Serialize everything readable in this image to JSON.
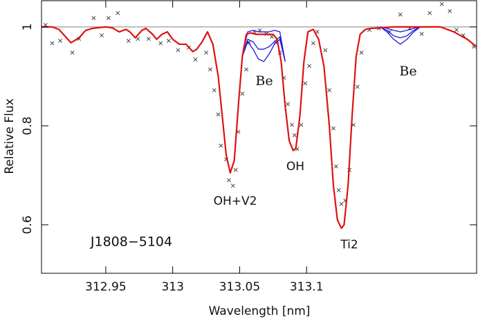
{
  "chart_data": {
    "type": "line",
    "x_label": "Wavelength [nm]",
    "y_label": "Relative Flux",
    "xlim": [
      312.902,
      313.227
    ],
    "ylim": [
      0.502,
      1.053
    ],
    "xticks": [
      312.95,
      313,
      313.05,
      313.1
    ],
    "yticks": [
      0.6,
      0.8,
      1
    ],
    "hline": 1,
    "hline_color": "#999999",
    "annotations": [
      {
        "text": "Be"
      },
      {
        "text": "Be"
      },
      {
        "text": "OH+V2"
      },
      {
        "text": "OH"
      },
      {
        "text": "Ti2"
      },
      {
        "text": "J1808−5104"
      }
    ],
    "series": [
      {
        "type": "scatter",
        "color": "#333333",
        "x": [
          312.905,
          312.91,
          312.916,
          312.925,
          312.93,
          312.941,
          312.947,
          312.952,
          312.959,
          312.967,
          312.974,
          312.982,
          312.991,
          312.997,
          313.004,
          313.012,
          313.017,
          313.025,
          313.028,
          313.031,
          313.034,
          313.036,
          313.04,
          313.042,
          313.045,
          313.047,
          313.049,
          313.052,
          313.055,
          313.057,
          313.061,
          313.065,
          313.07,
          313.074,
          313.077,
          313.08,
          313.083,
          313.086,
          313.089,
          313.091,
          313.093,
          313.096,
          313.099,
          313.102,
          313.105,
          313.108,
          313.114,
          313.117,
          313.12,
          313.122,
          313.124,
          313.126,
          313.129,
          313.132,
          313.135,
          313.138,
          313.141,
          313.147,
          313.154,
          313.162,
          313.17,
          313.177,
          313.186,
          313.192,
          313.201,
          313.207,
          313.212,
          313.217,
          313.225
        ],
        "values": [
          1.004,
          0.967,
          0.972,
          0.948,
          0.976,
          1.018,
          0.983,
          1.018,
          1.028,
          0.972,
          0.976,
          0.976,
          0.967,
          0.972,
          0.953,
          0.958,
          0.934,
          0.948,
          0.914,
          0.872,
          0.823,
          0.76,
          0.732,
          0.69,
          0.679,
          0.711,
          0.788,
          0.865,
          0.914,
          0.969,
          0.99,
          0.993,
          0.986,
          0.98,
          0.969,
          0.948,
          0.897,
          0.844,
          0.802,
          0.781,
          0.753,
          0.802,
          0.886,
          0.921,
          0.967,
          0.99,
          0.953,
          0.872,
          0.795,
          0.718,
          0.67,
          0.642,
          0.649,
          0.711,
          0.802,
          0.879,
          0.948,
          0.994,
          0.997,
          0.99,
          1.025,
          0.997,
          0.986,
          1.028,
          1.046,
          1.032,
          0.994,
          0.983,
          0.96
        ]
      },
      {
        "type": "line",
        "color": "#1a1ae0",
        "x": [
          313.052,
          313.056,
          313.06,
          313.064,
          313.068,
          313.072,
          313.076,
          313.08,
          313.084,
          313.12,
          313.155,
          313.16,
          313.165,
          313.17,
          313.175,
          313.18,
          313.185
        ],
        "values": [
          0.94,
          0.99,
          0.993,
          0.99,
          0.99,
          0.99,
          0.993,
          0.99,
          0.93,
          null,
          1.0,
          0.997,
          0.993,
          0.99,
          0.993,
          0.997,
          1.0
        ]
      },
      {
        "type": "line",
        "color": "#1a1ae0",
        "x": [
          313.052,
          313.056,
          313.06,
          313.064,
          313.068,
          313.072,
          313.076,
          313.08,
          313.084,
          313.12,
          313.155,
          313.16,
          313.165,
          313.17,
          313.175,
          313.18,
          313.185
        ],
        "values": [
          0.94,
          0.975,
          0.97,
          0.955,
          0.955,
          0.96,
          0.97,
          0.98,
          0.93,
          null,
          1.0,
          0.993,
          0.982,
          0.978,
          0.982,
          0.993,
          1.0
        ]
      },
      {
        "type": "line",
        "color": "#1a1ae0",
        "x": [
          313.052,
          313.056,
          313.06,
          313.064,
          313.068,
          313.072,
          313.076,
          313.08,
          313.084,
          313.12,
          313.155,
          313.16,
          313.165,
          313.17,
          313.175,
          313.18,
          313.185
        ],
        "values": [
          0.94,
          0.97,
          0.955,
          0.935,
          0.93,
          0.945,
          0.965,
          0.975,
          0.93,
          null,
          1.0,
          0.99,
          0.975,
          0.965,
          0.975,
          0.99,
          1.0
        ]
      },
      {
        "type": "line",
        "color": "#e01010",
        "x": [
          312.902,
          312.91,
          312.915,
          312.92,
          312.924,
          312.93,
          312.935,
          312.94,
          312.95,
          312.955,
          312.96,
          312.965,
          312.968,
          312.972,
          312.977,
          312.98,
          312.985,
          312.988,
          312.992,
          312.996,
          313.0,
          313.005,
          313.01,
          313.015,
          313.018,
          313.022,
          313.026,
          313.03,
          313.034,
          313.037,
          313.04,
          313.043,
          313.046,
          313.049,
          313.052,
          313.055,
          313.058,
          313.062,
          313.07,
          313.075,
          313.078,
          313.081,
          313.084,
          313.087,
          313.09,
          313.092,
          313.095,
          313.098,
          313.101,
          313.105,
          313.109,
          313.113,
          313.117,
          313.12,
          313.123,
          313.126,
          313.128,
          313.131,
          313.134,
          313.137,
          313.14,
          313.144,
          313.148,
          313.155,
          313.165,
          313.175,
          313.185,
          313.2,
          313.21,
          313.22,
          313.227
        ],
        "values": [
          1.0,
          1.0,
          0.995,
          0.98,
          0.968,
          0.978,
          0.993,
          0.997,
          1.0,
          0.998,
          0.99,
          0.995,
          0.99,
          0.978,
          0.993,
          0.997,
          0.985,
          0.975,
          0.985,
          0.99,
          0.975,
          0.965,
          0.965,
          0.95,
          0.955,
          0.97,
          0.99,
          0.965,
          0.9,
          0.82,
          0.74,
          0.705,
          0.73,
          0.84,
          0.94,
          0.985,
          0.988,
          0.985,
          0.985,
          0.985,
          0.975,
          0.93,
          0.84,
          0.77,
          0.75,
          0.755,
          0.82,
          0.93,
          0.99,
          0.995,
          0.975,
          0.92,
          0.8,
          0.68,
          0.61,
          0.593,
          0.6,
          0.68,
          0.82,
          0.94,
          0.985,
          0.995,
          0.997,
          0.998,
          1.0,
          1.0,
          1.0,
          1.0,
          0.99,
          0.975,
          0.96
        ]
      }
    ]
  }
}
